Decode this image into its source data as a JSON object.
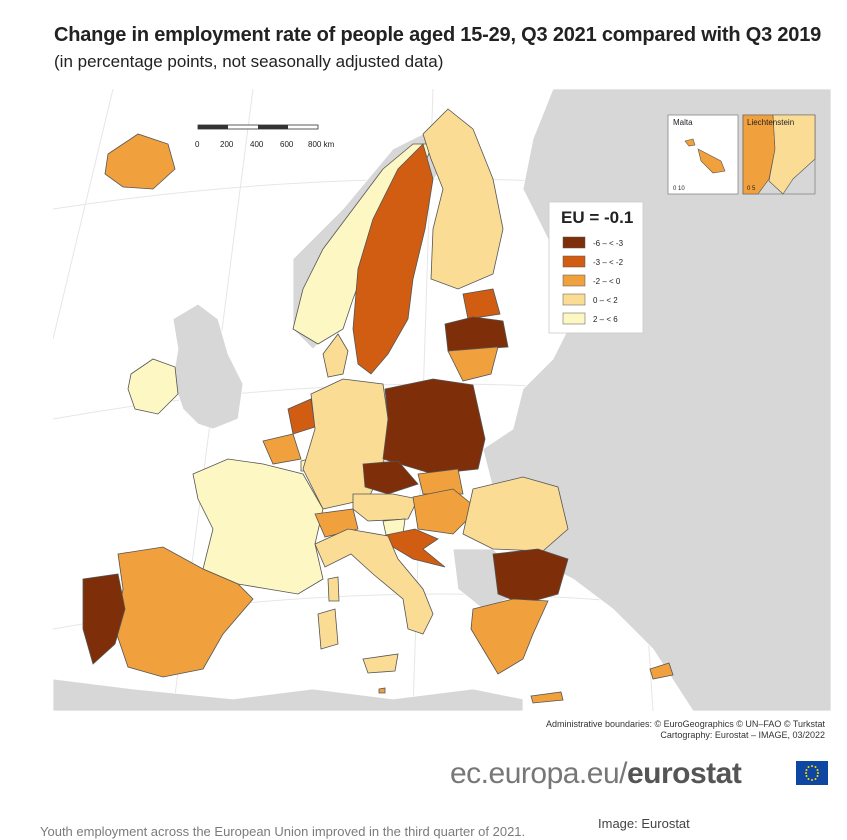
{
  "title": "Change in employment rate of people aged 15-29, Q3 2021 compared with Q3 2019",
  "subtitle": "(in percentage points, not seasonally adjusted data)",
  "scale": {
    "ticks": [
      "0",
      "200",
      "400",
      "600",
      "800 km"
    ]
  },
  "insets": {
    "malta": {
      "label": "Malta",
      "scale": "0 10"
    },
    "liechtenstein": {
      "label": "Liechtenstein",
      "scale": "0 5"
    }
  },
  "legend": {
    "title": "EU = -0.1",
    "classes": [
      {
        "label": "-6 – < -3",
        "color": "#7e2e09"
      },
      {
        "label": "-3 – < -2",
        "color": "#d05d12"
      },
      {
        "label": "-2 – < 0",
        "color": "#f0a03c"
      },
      {
        "label": "0 – < 2",
        "color": "#fbdc95"
      },
      {
        "label": "2 – < 6",
        "color": "#fdf7c4"
      }
    ]
  },
  "colors": {
    "no_data": "#d7d7d7",
    "sea": "#ffffff",
    "border": "#555555"
  },
  "credits": {
    "line1": "Administrative boundaries: © EuroGeographics © UN–FAO © Turkstat",
    "line2": "Cartography: Eurostat – IMAGE, 03/2022"
  },
  "brand": {
    "plain": "ec.europa.eu/",
    "bold": "eurostat"
  },
  "caption": "Youth employment across the European Union improved in the third quarter of 2021.",
  "image_credit": "Image: Eurostat"
}
